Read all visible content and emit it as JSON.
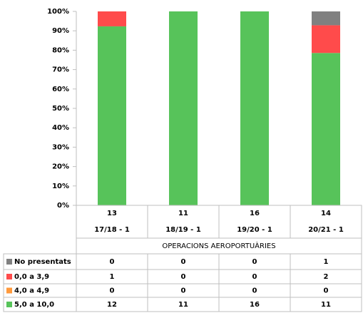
{
  "chart_data": {
    "type": "bar",
    "stacked": true,
    "categories": [
      "17/18 - 1",
      "18/19 - 1",
      "19/20 - 1",
      "20/21 - 1"
    ],
    "totals": [
      13,
      11,
      16,
      14
    ],
    "xlabel": "OPERACIONS AEROPORTUÀRIES",
    "series": [
      {
        "name": "No presentats",
        "color": "#808080",
        "values": [
          0,
          0,
          0,
          1
        ]
      },
      {
        "name": "0,0 a 3,9",
        "color": "#ff4b4b",
        "values": [
          1,
          0,
          0,
          2
        ]
      },
      {
        "name": "4,0 a 4,9",
        "color": "#ff9a3c",
        "values": [
          0,
          0,
          0,
          0
        ]
      },
      {
        "name": "5,0 a 10,0",
        "color": "#57c35a",
        "values": [
          12,
          11,
          16,
          11
        ]
      }
    ],
    "ylim": [
      0,
      100
    ],
    "yticks": [
      {
        "value": 0,
        "label": "0%"
      },
      {
        "value": 10,
        "label": "10%"
      },
      {
        "value": 20,
        "label": "20%"
      },
      {
        "value": 30,
        "label": "30%"
      },
      {
        "value": 40,
        "label": "40%"
      },
      {
        "value": 50,
        "label": "50%"
      },
      {
        "value": 60,
        "label": "60%"
      },
      {
        "value": 70,
        "label": "70%"
      },
      {
        "value": 80,
        "label": "80%"
      },
      {
        "value": 90,
        "label": "90%"
      },
      {
        "value": 100,
        "label": "100%"
      }
    ]
  }
}
